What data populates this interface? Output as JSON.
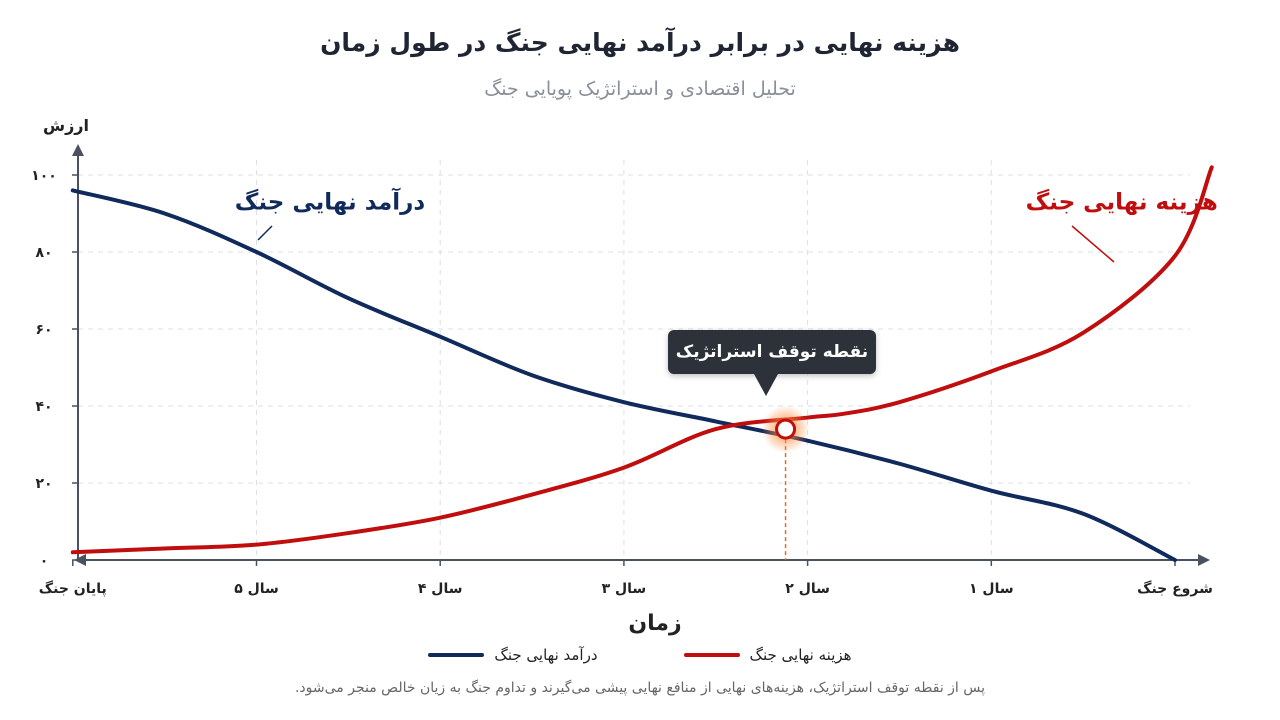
{
  "title": "هزینه نهایی در برابر درآمد نهایی جنگ در طول زمان",
  "subtitle": "تحلیل اقتصادی و استراتژیک پویایی جنگ",
  "colors": {
    "revenue": "#102a5c",
    "cost": "#c00d0d",
    "annotation": "#e96b1a",
    "axis": "#4a5160",
    "grid": "#dcdfe4"
  },
  "chart_data": {
    "type": "line",
    "ylabel": "ارزش",
    "xlabel": "زمان",
    "ylim": [
      0,
      100
    ],
    "x_ticks": [
      "شروع جنگ",
      "سال ۱",
      "سال ۲",
      "سال ۳",
      "سال ۴",
      "سال ۵",
      "پایان جنگ"
    ],
    "y_ticks": [
      "۰",
      "۲۰",
      "۴۰",
      "۶۰",
      "۸۰",
      "۱۰۰"
    ],
    "x_direction": "right-to-left",
    "grid": true,
    "series": [
      {
        "name": "درآمد نهایی جنگ",
        "color_key": "revenue",
        "x": [
          0,
          0.5,
          1,
          1.5,
          2,
          2.5,
          3,
          3.5,
          4,
          4.5,
          5,
          5.5,
          6
        ],
        "y": [
          0,
          12,
          18,
          25,
          31,
          36,
          41,
          48,
          58,
          68,
          80,
          90,
          96
        ]
      },
      {
        "name": "هزینه نهایی جنگ",
        "color_key": "cost",
        "x": [
          -0.2,
          0,
          0.5,
          1,
          1.5,
          1.8,
          2,
          2.5,
          3,
          3.5,
          4,
          4.5,
          5,
          5.5,
          6
        ],
        "y": [
          102,
          79,
          59,
          49,
          41,
          38,
          37,
          34,
          24,
          17,
          11,
          7,
          4,
          3,
          2
        ]
      }
    ],
    "series_labels": [
      {
        "text": "درآمد نهایی جنگ",
        "color_key": "revenue",
        "x": 4.6,
        "y": 91
      },
      {
        "text": "هزینه نهایی جنگ",
        "color_key": "cost",
        "x": 0.29,
        "y": 91
      }
    ],
    "annotation": {
      "label": "نقطه توقف استراتژیک",
      "x": 2.12,
      "y": 34
    },
    "legend": [
      {
        "name": "درآمد نهایی جنگ",
        "color_key": "revenue"
      },
      {
        "name": "هزینه نهایی جنگ",
        "color_key": "cost"
      }
    ],
    "legend_position": "bottom"
  },
  "footnote": "پس از نقطه توقف استراتژیک، هزینه‌های نهایی از منافع نهایی پیشی می‌گیرند و تداوم جنگ به زیان خالص منجر می‌شود."
}
